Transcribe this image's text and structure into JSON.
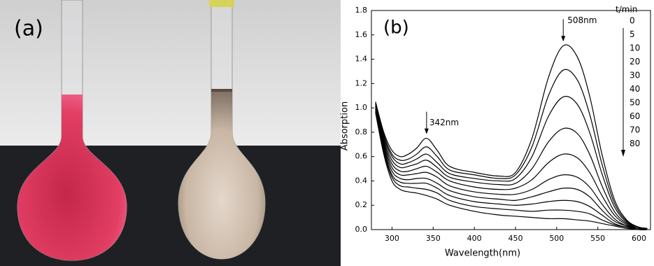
{
  "panel_a": {
    "label": "(a)"
  },
  "chart_data": {
    "type": "line",
    "panel_label": "(b)",
    "x_label": "Wavelength(nm)",
    "y_label": "Absorption",
    "x": [
      280,
      290,
      300,
      310,
      320,
      330,
      342,
      355,
      370,
      400,
      430,
      450,
      470,
      490,
      508,
      525,
      540,
      555,
      570,
      585,
      600,
      610
    ],
    "series": [
      {
        "name": "0",
        "color": "#000000",
        "values": [
          1.05,
          0.8,
          0.65,
          0.6,
          0.62,
          0.67,
          0.75,
          0.65,
          0.52,
          0.47,
          0.44,
          0.47,
          0.75,
          1.25,
          1.51,
          1.42,
          1.1,
          0.62,
          0.25,
          0.08,
          0.02,
          0.01
        ]
      },
      {
        "name": "5",
        "color": "#000000",
        "values": [
          1.04,
          0.78,
          0.62,
          0.57,
          0.58,
          0.62,
          0.68,
          0.6,
          0.49,
          0.45,
          0.42,
          0.45,
          0.68,
          1.1,
          1.31,
          1.23,
          0.95,
          0.54,
          0.22,
          0.07,
          0.02,
          0.01
        ]
      },
      {
        "name": "10",
        "color": "#000000",
        "values": [
          1.03,
          0.76,
          0.6,
          0.54,
          0.55,
          0.58,
          0.62,
          0.55,
          0.46,
          0.42,
          0.4,
          0.42,
          0.6,
          0.93,
          1.09,
          1.03,
          0.8,
          0.46,
          0.19,
          0.06,
          0.02,
          0.01
        ]
      },
      {
        "name": "20",
        "color": "#000000",
        "values": [
          1.02,
          0.74,
          0.57,
          0.51,
          0.52,
          0.54,
          0.57,
          0.51,
          0.43,
          0.39,
          0.37,
          0.38,
          0.5,
          0.72,
          0.83,
          0.79,
          0.62,
          0.36,
          0.15,
          0.05,
          0.01,
          0.01
        ]
      },
      {
        "name": "30",
        "color": "#000000",
        "values": [
          1.01,
          0.72,
          0.54,
          0.48,
          0.48,
          0.5,
          0.52,
          0.47,
          0.4,
          0.35,
          0.33,
          0.34,
          0.41,
          0.55,
          0.62,
          0.59,
          0.47,
          0.28,
          0.12,
          0.04,
          0.01,
          0.01
        ]
      },
      {
        "name": "40",
        "color": "#000000",
        "values": [
          1.0,
          0.7,
          0.51,
          0.45,
          0.45,
          0.46,
          0.47,
          0.43,
          0.36,
          0.31,
          0.29,
          0.29,
          0.33,
          0.41,
          0.45,
          0.43,
          0.35,
          0.21,
          0.09,
          0.03,
          0.01,
          0.0
        ]
      },
      {
        "name": "50",
        "color": "#000000",
        "values": [
          0.99,
          0.68,
          0.48,
          0.42,
          0.41,
          0.42,
          0.42,
          0.38,
          0.32,
          0.27,
          0.25,
          0.24,
          0.27,
          0.31,
          0.34,
          0.33,
          0.27,
          0.16,
          0.07,
          0.03,
          0.01,
          0.0
        ]
      },
      {
        "name": "60",
        "color": "#000000",
        "values": [
          0.98,
          0.66,
          0.45,
          0.39,
          0.38,
          0.38,
          0.38,
          0.34,
          0.28,
          0.23,
          0.21,
          0.2,
          0.21,
          0.23,
          0.24,
          0.23,
          0.19,
          0.12,
          0.05,
          0.02,
          0.01,
          0.0
        ]
      },
      {
        "name": "70",
        "color": "#000000",
        "values": [
          0.97,
          0.64,
          0.43,
          0.36,
          0.35,
          0.34,
          0.33,
          0.3,
          0.24,
          0.19,
          0.17,
          0.16,
          0.15,
          0.16,
          0.16,
          0.15,
          0.13,
          0.08,
          0.04,
          0.02,
          0.0,
          0.0
        ]
      },
      {
        "name": "80",
        "color": "#000000",
        "values": [
          0.96,
          0.62,
          0.4,
          0.33,
          0.31,
          0.3,
          0.28,
          0.25,
          0.2,
          0.15,
          0.12,
          0.11,
          0.1,
          0.09,
          0.09,
          0.08,
          0.07,
          0.05,
          0.03,
          0.01,
          0.0,
          0.0
        ]
      }
    ],
    "legend_title": "t/min",
    "legend": "right",
    "annotations": [
      {
        "text": "508nm",
        "x": 508
      },
      {
        "text": "342nm",
        "x": 342
      }
    ],
    "xlim": [
      275,
      614
    ],
    "xticks": [
      300,
      350,
      400,
      450,
      500,
      550,
      600
    ],
    "ylim": [
      0,
      1.8
    ],
    "yticks": [
      {
        "value": 0,
        "label": "0.0"
      },
      0.2,
      0.4,
      0.6,
      0.8,
      {
        "value": 1,
        "label": "1.0"
      },
      1.2,
      1.4,
      1.6,
      1.8
    ],
    "grid": false
  }
}
